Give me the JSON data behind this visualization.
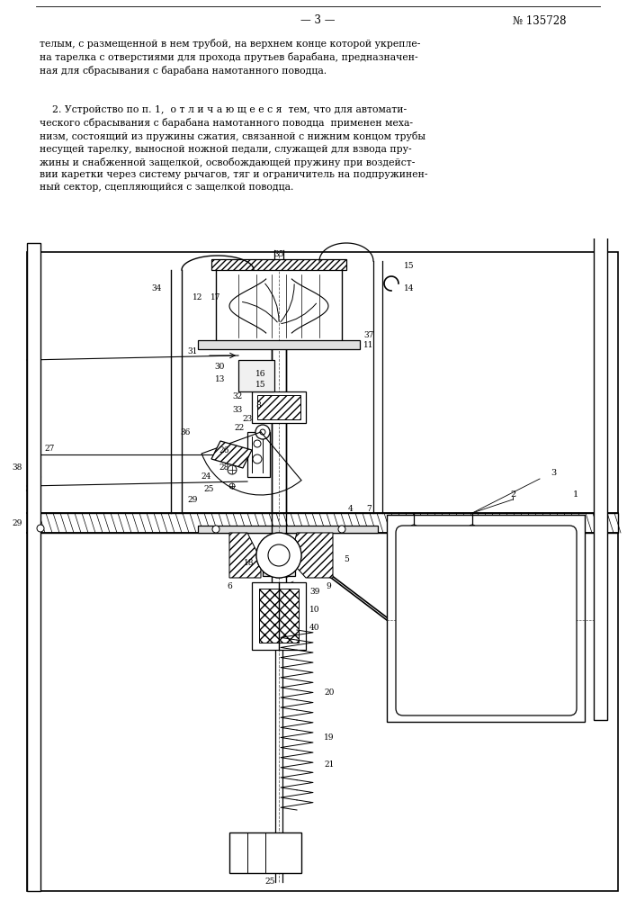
{
  "bg_color": "#ffffff",
  "page_num_text": "— 3 —",
  "patent_num_text": "№ 135728",
  "para1": "телым, с размещенной в нем трубой, на верхнем конце которой укрепле-\nна тарелка с отверстиями для прохода прутьев барабана, предназначен-\nная для сбрасывания с барабана намотанного поводца.",
  "para2": "    2. Устройство по п. 1,  о т л и ч а ю щ е е с я  тем, что для автомати-\nческого сбрасывания с барабана намотанного поводца  применен меха-\nнизм, состоящий из пружины сжатия, связанной с нижним концом трубы\nнесущей тарелку, выносной ножной педали, служащей для взвода пру-\nжины и снабженной защелкой, освобождающей пружину при воздейст-\nвии каретки через систему рычагов, тяг и ограничитель на подпружинен-\nный сектор, сцепляющийся с защелкой поводца."
}
